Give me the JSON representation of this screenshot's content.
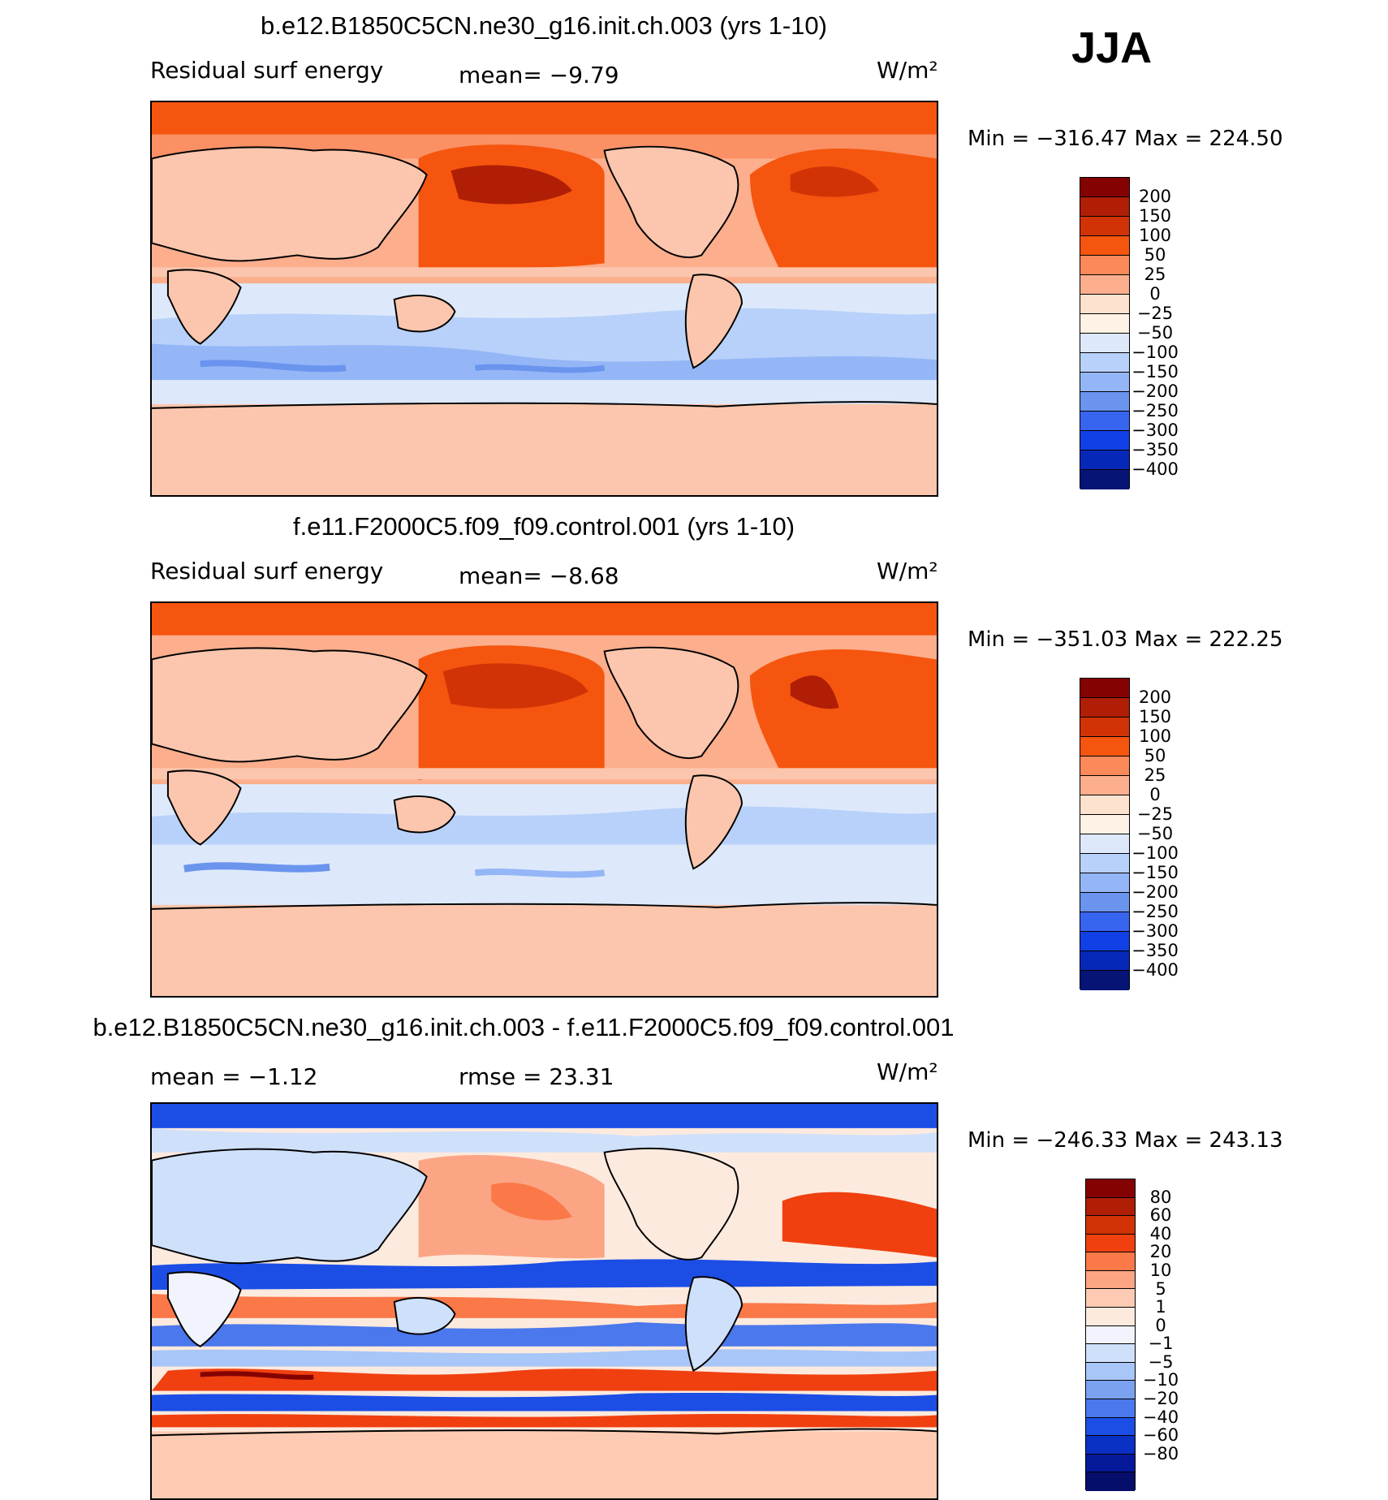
{
  "season": "JJA",
  "panels": [
    {
      "title": "b.e12.B1850C5CN.ne30_g16.init.ch.003 (yrs 1-10)",
      "left_label": "Residual surf energy",
      "center_label": "mean=   −9.79",
      "units": "W/m²",
      "minmax": "Min = −316.47 Max = 224.50",
      "colorbar_ticks": [
        "200",
        "150",
        "100",
        "50",
        "25",
        "0",
        "−25",
        "−50",
        "−100",
        "−150",
        "−200",
        "−250",
        "−300",
        "−350",
        "−400"
      ]
    },
    {
      "title": "f.e11.F2000C5.f09_f09.control.001 (yrs 1-10)",
      "left_label": "Residual surf energy",
      "center_label": "mean=   −8.68",
      "units": "W/m²",
      "minmax": "Min = −351.03 Max = 222.25",
      "colorbar_ticks": [
        "200",
        "150",
        "100",
        "50",
        "25",
        "0",
        "−25",
        "−50",
        "−100",
        "−150",
        "−200",
        "−250",
        "−300",
        "−350",
        "−400"
      ]
    },
    {
      "title": "b.e12.B1850C5CN.ne30_g16.init.ch.003 - f.e11.F2000C5.f09_f09.control.001",
      "left_label": "mean =   −1.12",
      "center_label": "rmse =   23.31",
      "units": "W/m²",
      "minmax": "Min = −246.33 Max = 243.13",
      "colorbar_ticks": [
        "80",
        "60",
        "40",
        "20",
        "10",
        "5",
        "1",
        "0",
        "−1",
        "−5",
        "−10",
        "−20",
        "−40",
        "−60",
        "−80"
      ]
    }
  ],
  "colors": {
    "abs_scale": [
      "#850203",
      "#b01e06",
      "#d23306",
      "#f5550e",
      "#fb8a5a",
      "#fcae8d",
      "#fde2cf",
      "#fef1e6",
      "#dde9fb",
      "#b8d1fa",
      "#94b6f7",
      "#6a94ee",
      "#3865f0",
      "#1040e6",
      "#0628b8",
      "#061475"
    ],
    "diff_scale": [
      "#850203",
      "#b01e06",
      "#d23306",
      "#f04010",
      "#fb7848",
      "#fca584",
      "#fdcbb3",
      "#fdeade",
      "#f1f4fd",
      "#cfe0fb",
      "#a8c6f8",
      "#7aa2f0",
      "#4b78ec",
      "#1c4ee6",
      "#0a30c4",
      "#06199a",
      "#050e6a"
    ]
  }
}
